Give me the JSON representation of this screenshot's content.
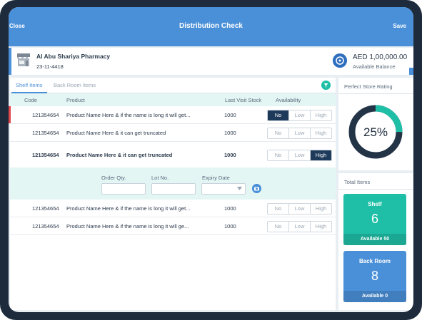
{
  "header": {
    "close_label": "Close",
    "title": "Distribution Check",
    "save_label": "Save"
  },
  "store": {
    "name": "Al Abu Shariya Pharmacy",
    "id": "23-11-4418",
    "balance_amount": "AED 1,00,000.00",
    "balance_label": "Available Balance"
  },
  "tabs": [
    {
      "label": "Shelf Items",
      "active": true
    },
    {
      "label": "Back Room Items",
      "active": false
    }
  ],
  "table": {
    "columns": {
      "code": "Code",
      "product": "Product",
      "last_visit": "Last Visit Stock",
      "availability": "Availability"
    },
    "availability_options": [
      "No",
      "Low",
      "High"
    ],
    "rows": [
      {
        "code": "121354654",
        "product": "Product Name Here & if the name is long it will get...",
        "stock": "1000",
        "selected": "No"
      },
      {
        "code": "121354654",
        "product": "Product Name Here & it can get truncated",
        "stock": "1000",
        "selected": ""
      },
      {
        "code": "121354654",
        "product": "Product Name Here & it can get truncated",
        "stock": "1000",
        "selected": "High"
      },
      {
        "code": "121354654",
        "product": "Product Name Here & if the name is long it will get...",
        "stock": "1000",
        "selected": ""
      },
      {
        "code": "121354654",
        "product": "Product Name Here & if the name is long it will ge...",
        "stock": "1000",
        "selected": ""
      }
    ],
    "expand": {
      "order_qty_label": "Order Qty.",
      "lot_no_label": "Lot No.",
      "expiry_label": "Expiry Date"
    }
  },
  "rating": {
    "title": "Perfect Store Rating",
    "value": "25%",
    "fraction": 0.25,
    "track_color": "#243447",
    "progress_color": "#1fbfa7"
  },
  "totals": {
    "title": "Total Items",
    "shelf": {
      "label": "Shelf",
      "count": "6",
      "available": "Available 50",
      "color": "#1fbfa7"
    },
    "back_room": {
      "label": "Back Room",
      "count": "8",
      "available": "Available 0",
      "color": "#4a90d9"
    }
  }
}
